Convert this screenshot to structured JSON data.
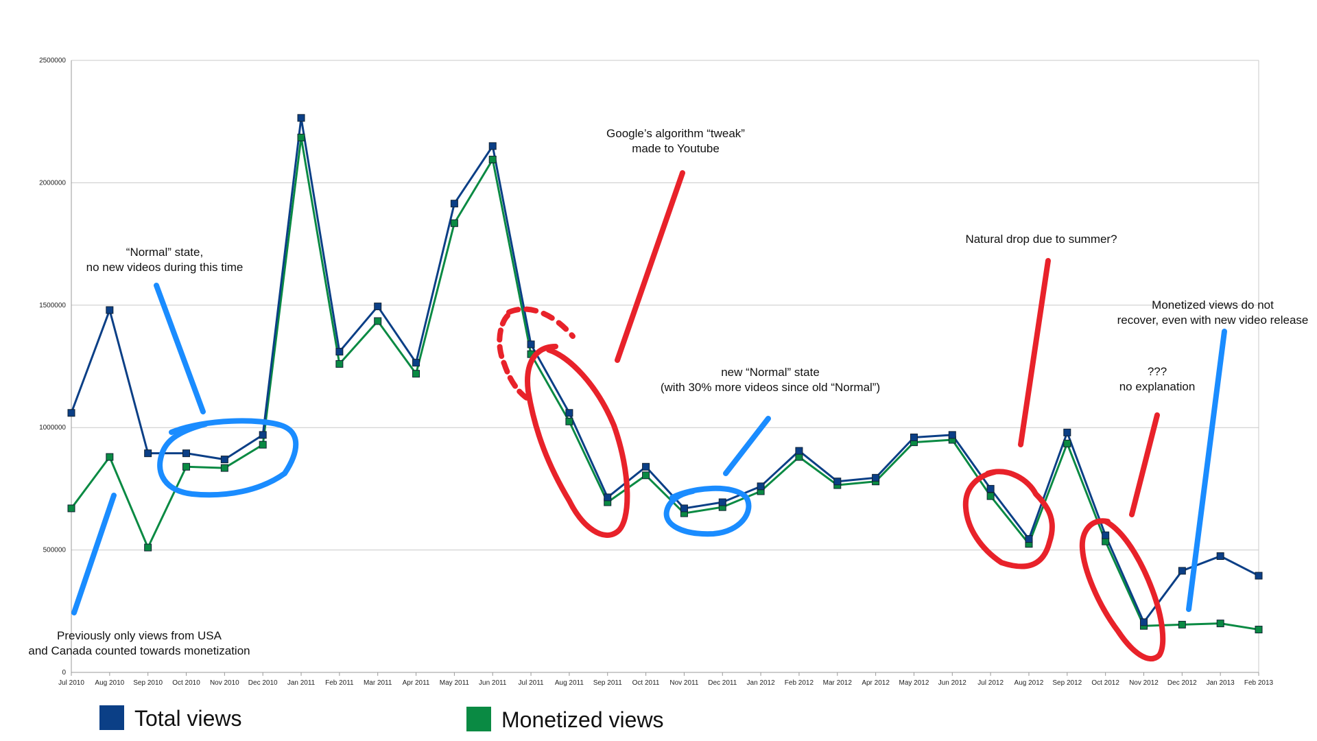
{
  "chart_data": {
    "type": "line",
    "categories": [
      "Jul 2010",
      "Aug 2010",
      "Sep 2010",
      "Oct 2010",
      "Nov 2010",
      "Dec 2010",
      "Jan 2011",
      "Feb 2011",
      "Mar 2011",
      "Apr 2011",
      "May 2011",
      "Jun 2011",
      "Jul 2011",
      "Aug 2011",
      "Sep 2011",
      "Oct 2011",
      "Nov 2011",
      "Dec 2011",
      "Jan 2012",
      "Feb 2012",
      "Mar 2012",
      "Apr 2012",
      "May 2012",
      "Jun 2012",
      "Jul 2012",
      "Aug 2012",
      "Sep 2012",
      "Oct 2012",
      "Nov 2012",
      "Dec 2012",
      "Jan 2013",
      "Feb 2013"
    ],
    "series": [
      {
        "name": "Total views",
        "color": "#0b3f86",
        "values": [
          1060000,
          1480000,
          895000,
          895000,
          870000,
          970000,
          2265000,
          1310000,
          1495000,
          1265000,
          1915000,
          2150000,
          1340000,
          1060000,
          715000,
          840000,
          670000,
          695000,
          760000,
          905000,
          780000,
          795000,
          960000,
          970000,
          750000,
          545000,
          980000,
          560000,
          205000,
          415000,
          475000,
          395000
        ]
      },
      {
        "name": "Monetized views",
        "color": "#0a8a43",
        "values": [
          670000,
          880000,
          510000,
          840000,
          835000,
          930000,
          2185000,
          1260000,
          1435000,
          1220000,
          1835000,
          2095000,
          1300000,
          1025000,
          695000,
          805000,
          650000,
          675000,
          740000,
          880000,
          765000,
          780000,
          940000,
          950000,
          720000,
          525000,
          935000,
          535000,
          190000,
          195000,
          200000,
          175000
        ]
      }
    ],
    "ylim": [
      0,
      2500000
    ],
    "yticks": [
      "0",
      "500000",
      "1000000",
      "1500000",
      "2000000",
      "2500000"
    ],
    "grid": true,
    "legend_position": "bottom"
  },
  "annotations": {
    "normal_state": [
      "“Normal” state,",
      "no new videos during this time"
    ],
    "previous_views": [
      "Previously only views from USA",
      "and Canada counted towards monetization"
    ],
    "google_tweak": [
      "Google’s algorithm “tweak”",
      "made to Youtube"
    ],
    "new_normal": [
      "new “Normal” state",
      "(with 30% more videos since old “Normal”)"
    ],
    "summer_drop": [
      "Natural drop due to summer?"
    ],
    "monetized_no_recover": [
      "Monetized views do not",
      "recover, even with new video release"
    ],
    "no_explanation": [
      "???",
      "no explanation"
    ]
  },
  "colors": {
    "red_marker": "#e8222a",
    "blue_marker": "#1a8cff",
    "grid": "#c8c8c8"
  }
}
